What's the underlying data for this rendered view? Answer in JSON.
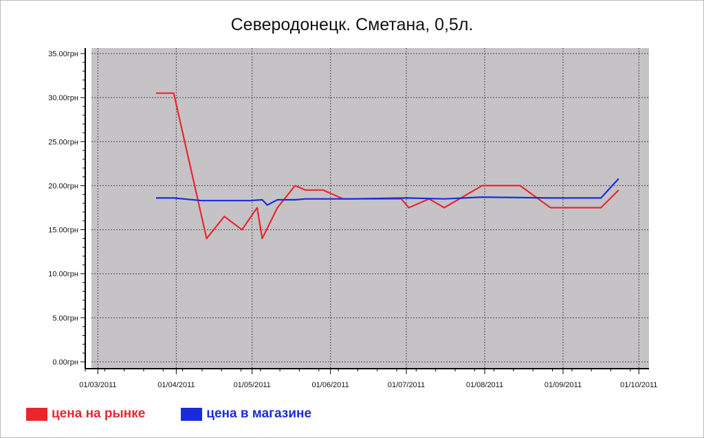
{
  "chart_data": {
    "type": "line",
    "title": "Северодонецк. Сметана, 0,5л.",
    "xlabel": "",
    "ylabel": "",
    "ylim": [
      0,
      35
    ],
    "y_ticks": [
      {
        "value": 0,
        "label": "0.00грн"
      },
      {
        "value": 5,
        "label": "5.00грн"
      },
      {
        "value": 10,
        "label": "10.00грн"
      },
      {
        "value": 15,
        "label": "15.00грн"
      },
      {
        "value": 20,
        "label": "20.00грн"
      },
      {
        "value": 25,
        "label": "25.00грн"
      },
      {
        "value": 30,
        "label": "30.00грн"
      },
      {
        "value": 35,
        "label": "35.00грн"
      }
    ],
    "x_range": [
      "2011-02-24",
      "2011-10-05"
    ],
    "x_ticks": [
      {
        "date": "2011-03-01",
        "label": "01/03/2011"
      },
      {
        "date": "2011-04-01",
        "label": "01/04/2011"
      },
      {
        "date": "2011-05-01",
        "label": "01/05/2011"
      },
      {
        "date": "2011-06-01",
        "label": "01/06/2011"
      },
      {
        "date": "2011-07-01",
        "label": "01/07/2011"
      },
      {
        "date": "2011-08-01",
        "label": "01/08/2011"
      },
      {
        "date": "2011-09-01",
        "label": "01/09/2011"
      },
      {
        "date": "2011-10-01",
        "label": "01/10/2011"
      }
    ],
    "grid": true,
    "legend_position": "bottom-left",
    "series": [
      {
        "name": "цена на рынке",
        "color": "#e8272d",
        "points": [
          {
            "x": "2011-03-24",
            "y": 30.5
          },
          {
            "x": "2011-03-31",
            "y": 30.5
          },
          {
            "x": "2011-04-13",
            "y": 14.0
          },
          {
            "x": "2011-04-20",
            "y": 16.5
          },
          {
            "x": "2011-04-27",
            "y": 15.0
          },
          {
            "x": "2011-05-03",
            "y": 17.5
          },
          {
            "x": "2011-05-05",
            "y": 14.0
          },
          {
            "x": "2011-05-11",
            "y": 17.5
          },
          {
            "x": "2011-05-18",
            "y": 20.0
          },
          {
            "x": "2011-05-22",
            "y": 19.5
          },
          {
            "x": "2011-05-29",
            "y": 19.5
          },
          {
            "x": "2011-06-06",
            "y": 18.5
          },
          {
            "x": "2011-06-29",
            "y": 18.5
          },
          {
            "x": "2011-07-02",
            "y": 17.5
          },
          {
            "x": "2011-07-10",
            "y": 18.5
          },
          {
            "x": "2011-07-16",
            "y": 17.5
          },
          {
            "x": "2011-07-31",
            "y": 20.0
          },
          {
            "x": "2011-08-15",
            "y": 20.0
          },
          {
            "x": "2011-08-27",
            "y": 17.5
          },
          {
            "x": "2011-09-16",
            "y": 17.5
          },
          {
            "x": "2011-09-23",
            "y": 19.5
          }
        ]
      },
      {
        "name": "цена в магазине",
        "color": "#1a2bdc",
        "points": [
          {
            "x": "2011-03-24",
            "y": 18.6
          },
          {
            "x": "2011-03-31",
            "y": 18.6
          },
          {
            "x": "2011-04-11",
            "y": 18.3
          },
          {
            "x": "2011-04-30",
            "y": 18.3
          },
          {
            "x": "2011-05-05",
            "y": 18.4
          },
          {
            "x": "2011-05-07",
            "y": 17.8
          },
          {
            "x": "2011-05-11",
            "y": 18.4
          },
          {
            "x": "2011-05-18",
            "y": 18.4
          },
          {
            "x": "2011-05-22",
            "y": 18.5
          },
          {
            "x": "2011-06-08",
            "y": 18.5
          },
          {
            "x": "2011-07-01",
            "y": 18.6
          },
          {
            "x": "2011-07-16",
            "y": 18.5
          },
          {
            "x": "2011-07-31",
            "y": 18.7
          },
          {
            "x": "2011-08-27",
            "y": 18.6
          },
          {
            "x": "2011-09-16",
            "y": 18.6
          },
          {
            "x": "2011-09-23",
            "y": 20.8
          }
        ]
      }
    ]
  }
}
